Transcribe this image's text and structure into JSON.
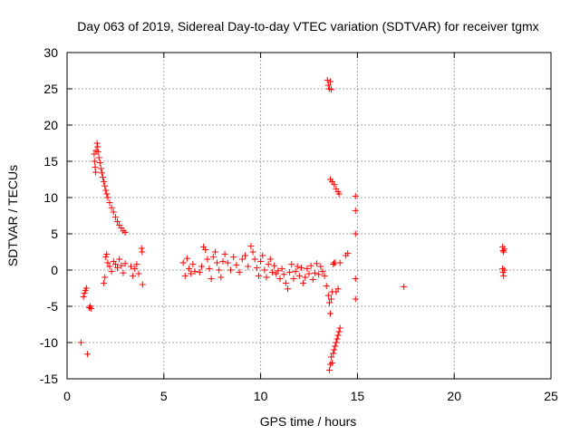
{
  "chart_data": {
    "type": "scatter",
    "title": "Day 063 of 2019, Sidereal Day-to-day VTEC variation (SDTVAR) for receiver tgmx",
    "xlabel": "GPS time / hours",
    "ylabel": "SDTVAR / TECUs",
    "xlim": [
      0,
      25
    ],
    "ylim": [
      -15,
      30
    ],
    "xticks": [
      0,
      5,
      10,
      15,
      20,
      25
    ],
    "yticks": [
      -15,
      -10,
      -5,
      0,
      5,
      10,
      15,
      20,
      25,
      30
    ],
    "grid": true,
    "marker": "+",
    "color": "#ff0000",
    "series": [
      {
        "name": "SDTVAR",
        "points": [
          [
            0.72,
            -10.0
          ],
          [
            0.85,
            -3.7
          ],
          [
            0.9,
            -3.2
          ],
          [
            0.95,
            -2.8
          ],
          [
            1.0,
            -2.5
          ],
          [
            1.05,
            -11.6
          ],
          [
            1.15,
            -5.2
          ],
          [
            1.2,
            -5.0
          ],
          [
            1.25,
            -5.3
          ],
          [
            1.4,
            16.0
          ],
          [
            1.42,
            15.0
          ],
          [
            1.45,
            14.2
          ],
          [
            1.48,
            13.5
          ],
          [
            1.5,
            16.5
          ],
          [
            1.55,
            17.5
          ],
          [
            1.58,
            17.0
          ],
          [
            1.6,
            16.3
          ],
          [
            1.65,
            15.5
          ],
          [
            1.7,
            14.8
          ],
          [
            1.75,
            14.0
          ],
          [
            1.8,
            13.4
          ],
          [
            1.85,
            12.8
          ],
          [
            1.9,
            12.2
          ],
          [
            1.95,
            11.6
          ],
          [
            2.0,
            11.0
          ],
          [
            2.05,
            10.5
          ],
          [
            2.1,
            10.0
          ],
          [
            2.2,
            9.3
          ],
          [
            2.3,
            8.6
          ],
          [
            2.4,
            8.0
          ],
          [
            2.5,
            7.3
          ],
          [
            2.6,
            6.7
          ],
          [
            2.7,
            6.2
          ],
          [
            2.8,
            5.8
          ],
          [
            2.9,
            5.4
          ],
          [
            3.0,
            5.2
          ],
          [
            1.9,
            -1.8
          ],
          [
            1.95,
            -1.0
          ],
          [
            2.0,
            1.8
          ],
          [
            2.05,
            2.2
          ],
          [
            2.1,
            1.0
          ],
          [
            2.2,
            0.5
          ],
          [
            2.3,
            -0.2
          ],
          [
            2.4,
            1.2
          ],
          [
            2.5,
            0.8
          ],
          [
            2.6,
            0.3
          ],
          [
            2.7,
            1.5
          ],
          [
            2.8,
            0.6
          ],
          [
            2.9,
            -0.4
          ],
          [
            3.0,
            0.9
          ],
          [
            3.3,
            0.5
          ],
          [
            3.4,
            -0.8
          ],
          [
            3.5,
            0.2
          ],
          [
            3.6,
            0.8
          ],
          [
            3.7,
            -0.5
          ],
          [
            3.85,
            3.0
          ],
          [
            3.88,
            2.5
          ],
          [
            3.9,
            -2.0
          ],
          [
            6.0,
            1.0
          ],
          [
            6.1,
            -0.8
          ],
          [
            6.2,
            1.6
          ],
          [
            6.3,
            0.2
          ],
          [
            6.4,
            -0.5
          ],
          [
            6.5,
            0.8
          ],
          [
            6.6,
            -0.2
          ],
          [
            6.85,
            -0.3
          ],
          [
            6.95,
            0.5
          ],
          [
            7.05,
            3.2
          ],
          [
            7.15,
            2.8
          ],
          [
            7.25,
            1.5
          ],
          [
            7.35,
            0.2
          ],
          [
            7.45,
            -1.2
          ],
          [
            7.55,
            1.8
          ],
          [
            7.65,
            2.5
          ],
          [
            7.75,
            1.0
          ],
          [
            7.85,
            0.0
          ],
          [
            7.95,
            -1.0
          ],
          [
            8.05,
            1.2
          ],
          [
            8.15,
            2.2
          ],
          [
            8.3,
            1.0
          ],
          [
            8.45,
            0.0
          ],
          [
            8.6,
            1.8
          ],
          [
            8.75,
            0.7
          ],
          [
            8.9,
            -0.3
          ],
          [
            9.05,
            1.5
          ],
          [
            9.2,
            2.0
          ],
          [
            9.35,
            0.5
          ],
          [
            9.5,
            3.3
          ],
          [
            9.6,
            2.5
          ],
          [
            9.7,
            1.5
          ],
          [
            9.8,
            0.3
          ],
          [
            9.9,
            -0.8
          ],
          [
            10.0,
            1.2
          ],
          [
            10.1,
            2.0
          ],
          [
            10.2,
            0.0
          ],
          [
            10.3,
            -1.0
          ],
          [
            10.4,
            0.8
          ],
          [
            10.5,
            1.5
          ],
          [
            10.6,
            -0.3
          ],
          [
            10.7,
            0.6
          ],
          [
            10.8,
            -0.5
          ],
          [
            10.9,
            -0.1
          ],
          [
            11.0,
            -1.2
          ],
          [
            11.1,
            0.2
          ],
          [
            11.2,
            -0.6
          ],
          [
            11.3,
            -1.8
          ],
          [
            11.4,
            -2.6
          ],
          [
            11.5,
            -0.3
          ],
          [
            11.6,
            0.8
          ],
          [
            11.7,
            -1.2
          ],
          [
            11.8,
            -0.2
          ],
          [
            11.9,
            0.5
          ],
          [
            12.0,
            -0.8
          ],
          [
            12.1,
            0.3
          ],
          [
            12.2,
            -1.8
          ],
          [
            12.3,
            -1.0
          ],
          [
            12.4,
            0.2
          ],
          [
            12.5,
            -0.5
          ],
          [
            12.6,
            0.6
          ],
          [
            12.7,
            -1.3
          ],
          [
            12.8,
            -0.4
          ],
          [
            12.9,
            0.9
          ],
          [
            13.0,
            -0.6
          ],
          [
            13.1,
            0.5
          ],
          [
            13.2,
            -0.2
          ],
          [
            13.3,
            -0.8
          ],
          [
            13.4,
            -2.2
          ],
          [
            13.5,
            -3.5
          ],
          [
            13.55,
            -4.5
          ],
          [
            13.6,
            -6.0
          ],
          [
            13.65,
            -4.0
          ],
          [
            13.7,
            -3.0
          ],
          [
            13.75,
            0.8
          ],
          [
            13.8,
            1.0
          ],
          [
            13.85,
            1.0
          ],
          [
            13.9,
            -3.0
          ],
          [
            14.0,
            -2.6
          ],
          [
            14.1,
            1.0
          ],
          [
            13.45,
            26.2
          ],
          [
            13.5,
            25.5
          ],
          [
            13.55,
            25.0
          ],
          [
            13.6,
            26.0
          ],
          [
            13.65,
            24.9
          ],
          [
            13.55,
            -13.8
          ],
          [
            13.6,
            -13.0
          ],
          [
            13.65,
            -12.0
          ],
          [
            13.7,
            -12.8
          ],
          [
            13.75,
            -11.5
          ],
          [
            13.8,
            -11.0
          ],
          [
            13.85,
            -10.5
          ],
          [
            13.9,
            -10.0
          ],
          [
            13.95,
            -9.5
          ],
          [
            14.0,
            -9.0
          ],
          [
            14.05,
            -8.5
          ],
          [
            14.1,
            -8.0
          ],
          [
            13.6,
            12.5
          ],
          [
            13.7,
            12.2
          ],
          [
            13.8,
            11.8
          ],
          [
            13.9,
            11.2
          ],
          [
            14.0,
            10.8
          ],
          [
            14.05,
            10.5
          ],
          [
            14.4,
            2.0
          ],
          [
            14.5,
            2.3
          ],
          [
            14.9,
            10.2
          ],
          [
            14.9,
            8.2
          ],
          [
            14.9,
            5.0
          ],
          [
            14.9,
            -1.2
          ],
          [
            14.9,
            -4.0
          ],
          [
            17.4,
            -2.3
          ],
          [
            22.5,
            3.2
          ],
          [
            22.52,
            2.7
          ],
          [
            22.55,
            2.5
          ],
          [
            22.6,
            2.9
          ],
          [
            22.5,
            0.2
          ],
          [
            22.52,
            -0.3
          ],
          [
            22.55,
            -0.8
          ],
          [
            22.6,
            0.0
          ]
        ]
      }
    ]
  }
}
